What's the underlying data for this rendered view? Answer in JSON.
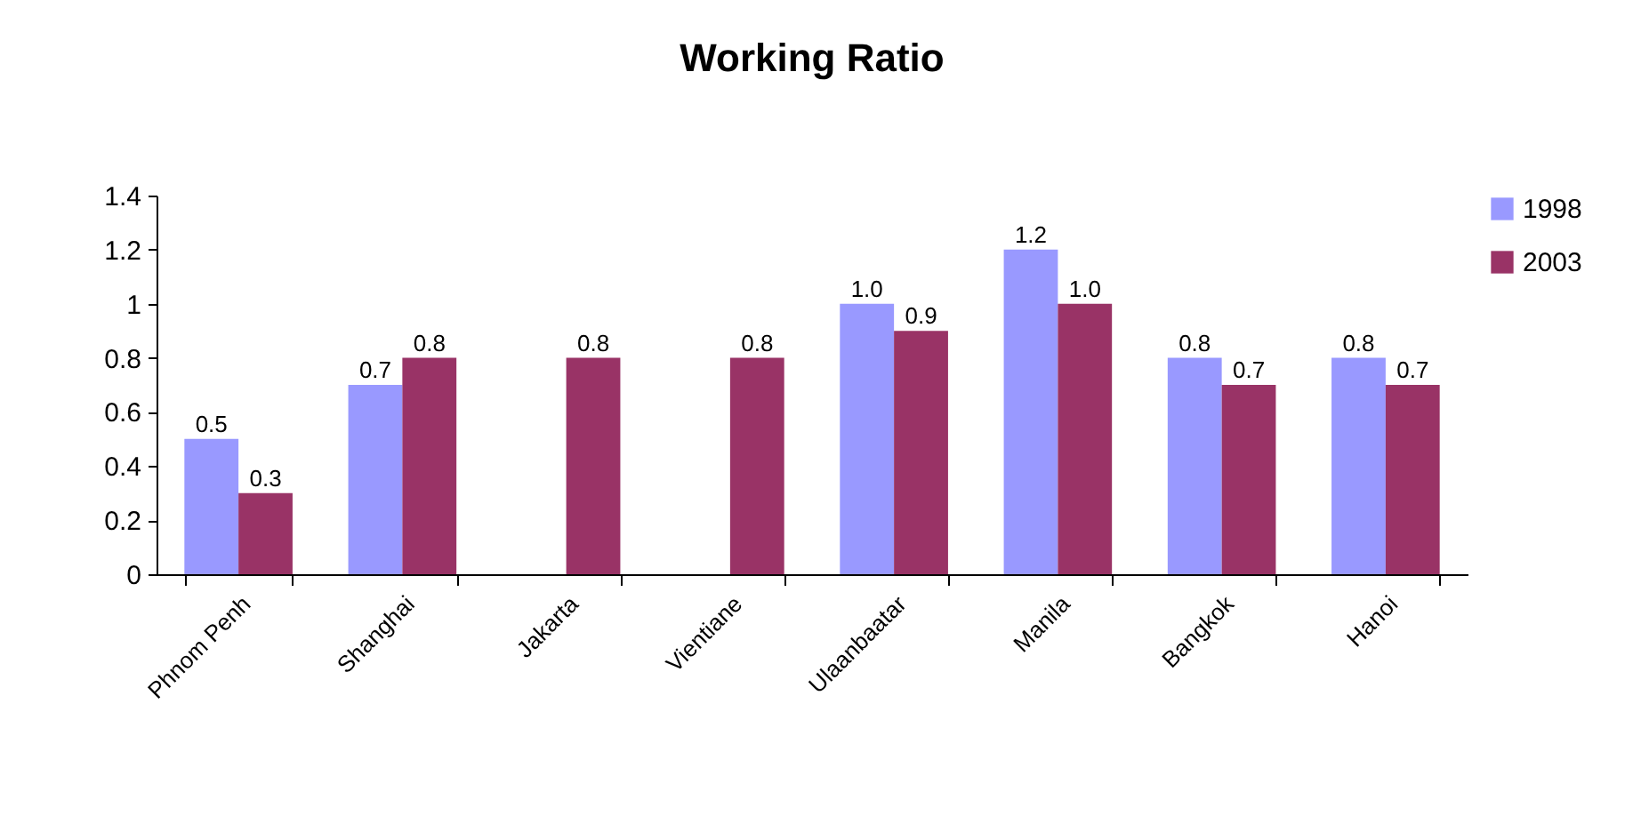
{
  "chart_data": {
    "type": "bar",
    "title": "Working Ratio",
    "categories": [
      "Phnom Penh",
      "Shanghai",
      "Jakarta",
      "Vientiane",
      "Ulaanbaatar",
      "Manila",
      "Bangkok",
      "Hanoi"
    ],
    "series": [
      {
        "name": "1998",
        "color": "#9999ff",
        "values": [
          0.5,
          0.7,
          null,
          null,
          1.0,
          1.2,
          0.8,
          0.8
        ],
        "value_labels": [
          "0.5",
          "0.7",
          null,
          null,
          "1.0",
          "1.2",
          "0.8",
          "0.8"
        ]
      },
      {
        "name": "2003",
        "color": "#993366",
        "values": [
          0.3,
          0.8,
          0.8,
          0.8,
          0.9,
          1.0,
          0.7,
          0.7
        ],
        "value_labels": [
          "0.3",
          "0.8",
          "0.8",
          "0.8",
          "0.9",
          "1.0",
          "0.7",
          "0.7"
        ]
      }
    ],
    "ylim": [
      0,
      1.4
    ],
    "yticks": [
      0,
      0.2,
      0.4,
      0.6,
      0.8,
      1,
      1.2,
      1.4
    ],
    "grid": false,
    "legend": "right"
  }
}
